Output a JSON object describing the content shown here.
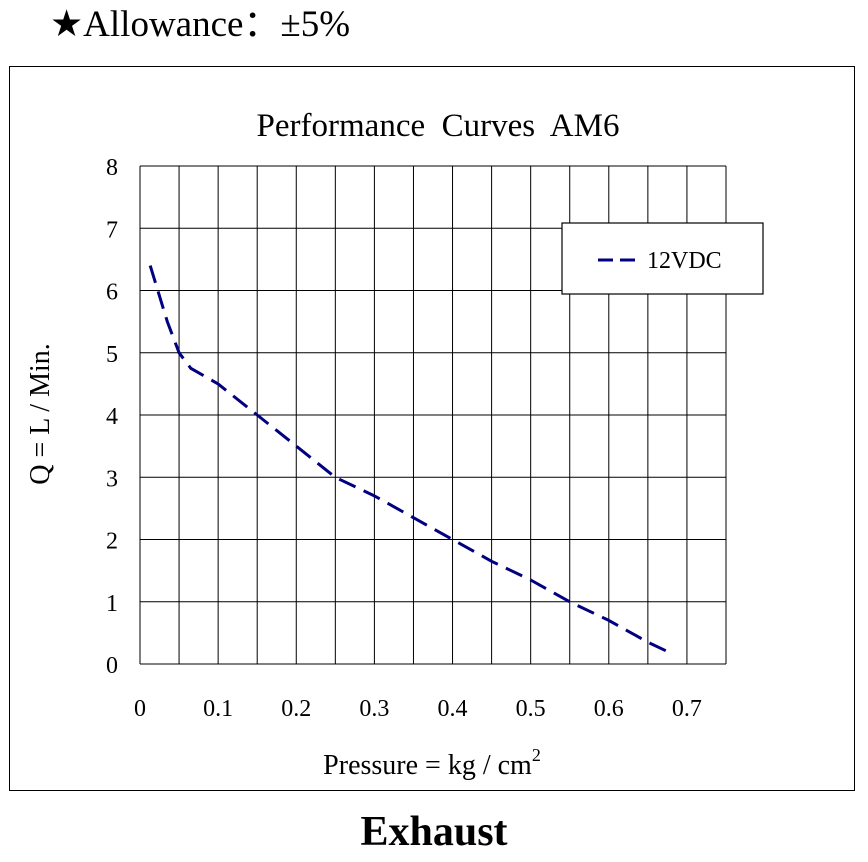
{
  "header": {
    "allowance": "★Allowance：±5%"
  },
  "footer": {
    "label": "Exhaust"
  },
  "chart_data": {
    "type": "line",
    "title": "Performance  Curves  AM6",
    "xlabel": "Pressure = kg / cm",
    "xlabel_superscript": "2",
    "ylabel": "Q = L / Min.",
    "xlim": [
      0,
      0.75
    ],
    "ylim": [
      0,
      8
    ],
    "x_ticks": [
      0,
      0.1,
      0.2,
      0.3,
      0.4,
      0.5,
      0.6,
      0.7
    ],
    "y_ticks": [
      0,
      1,
      2,
      3,
      4,
      5,
      6,
      7,
      8
    ],
    "x_tick_labels": [
      "0",
      "0.1",
      "0.2",
      "0.3",
      "0.4",
      "0.5",
      "0.6",
      "0.7"
    ],
    "y_tick_labels": [
      "0",
      "1",
      "2",
      "3",
      "4",
      "5",
      "6",
      "7",
      "8"
    ],
    "grid": true,
    "legend_position": "top-right",
    "series": [
      {
        "name": "12VDC",
        "style": "dashed",
        "color": "#000080",
        "x": [
          0.013,
          0.035,
          0.05,
          0.065,
          0.1,
          0.15,
          0.2,
          0.25,
          0.3,
          0.35,
          0.4,
          0.45,
          0.5,
          0.55,
          0.6,
          0.65,
          0.675
        ],
        "y": [
          6.4,
          5.5,
          5.0,
          4.75,
          4.5,
          4.0,
          3.5,
          3.0,
          2.7,
          2.35,
          2.0,
          1.65,
          1.35,
          1.0,
          0.7,
          0.35,
          0.2
        ]
      }
    ]
  }
}
